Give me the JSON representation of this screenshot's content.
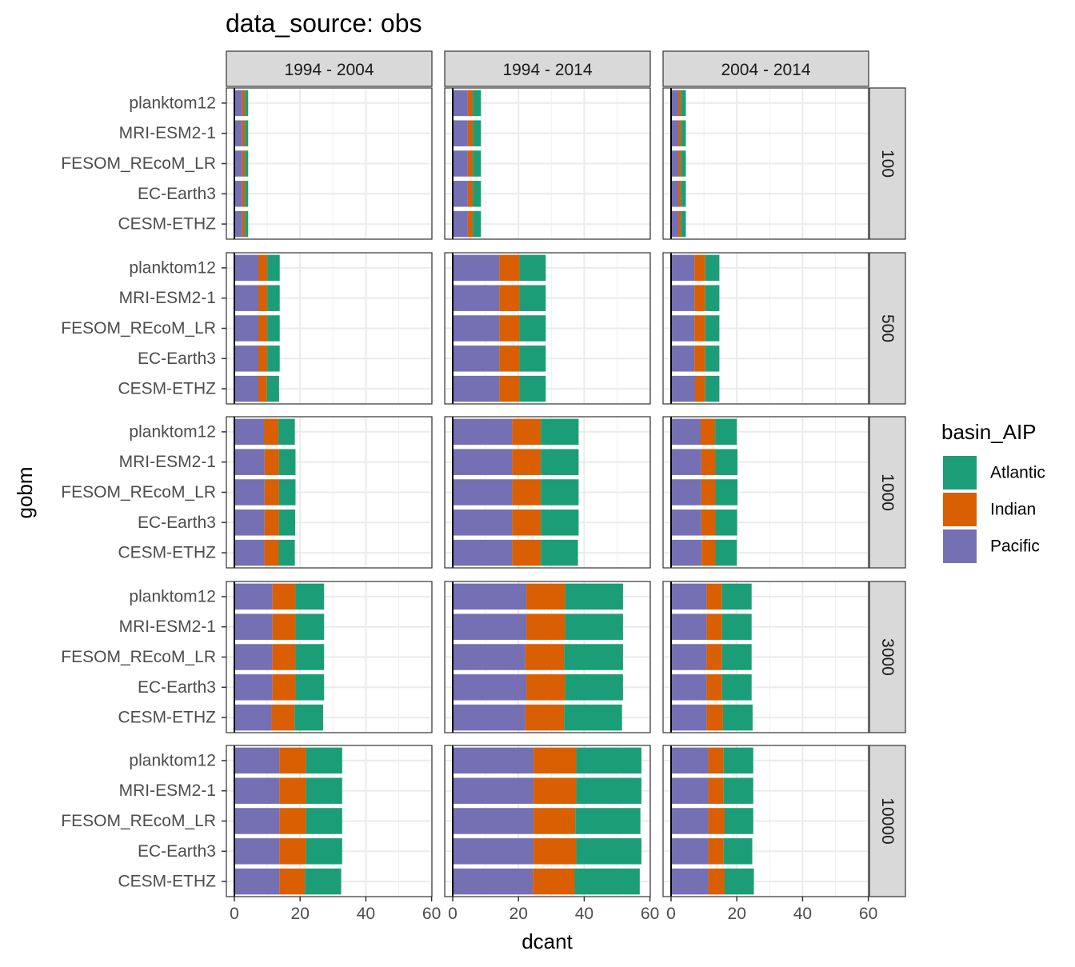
{
  "chart_data": {
    "type": "bar",
    "orientation": "horizontal",
    "stacked": true,
    "title": "data_source: obs",
    "xlabel": "dcant",
    "ylabel": "gobm",
    "xlim": [
      0,
      60
    ],
    "x_ticks": [
      "0",
      "20",
      "40",
      "60"
    ],
    "grid": true,
    "facet_columns": [
      "1994 - 2004",
      "1994 - 2014",
      "2004 - 2014"
    ],
    "facet_rows": [
      "100",
      "500",
      "1000",
      "3000",
      "10000"
    ],
    "categories": [
      "planktom12",
      "MRI-ESM2-1",
      "FESOM_REcoM_LR",
      "EC-Earth3",
      "CESM-ETHZ"
    ],
    "legend": {
      "title": "basin_AIP",
      "position": "right",
      "entries": [
        {
          "name": "Atlantic",
          "color": "#1B9E77"
        },
        {
          "name": "Indian",
          "color": "#D95F02"
        },
        {
          "name": "Pacific",
          "color": "#7570B3"
        }
      ]
    },
    "stack_order": [
      "Pacific",
      "Indian",
      "Atlantic"
    ],
    "panels": [
      {
        "column": "1994 - 2004",
        "row": "100",
        "series": {
          "Pacific": [
            2.4,
            2.4,
            2.4,
            2.4,
            2.4
          ],
          "Indian": [
            0.8,
            0.8,
            0.8,
            0.8,
            0.8
          ],
          "Atlantic": [
            1.0,
            1.0,
            1.0,
            1.0,
            1.0
          ]
        }
      },
      {
        "column": "1994 - 2014",
        "row": "100",
        "series": {
          "Pacific": [
            4.6,
            4.6,
            4.6,
            4.6,
            4.6
          ],
          "Indian": [
            1.5,
            1.5,
            1.5,
            1.5,
            1.5
          ],
          "Atlantic": [
            2.5,
            2.5,
            2.5,
            2.5,
            2.5
          ]
        }
      },
      {
        "column": "2004 - 2014",
        "row": "100",
        "series": {
          "Pacific": [
            2.2,
            2.2,
            2.2,
            2.2,
            2.2
          ],
          "Indian": [
            0.8,
            0.8,
            0.8,
            0.8,
            0.8
          ],
          "Atlantic": [
            1.5,
            1.5,
            1.5,
            1.5,
            1.5
          ]
        }
      },
      {
        "column": "1994 - 2004",
        "row": "500",
        "series": {
          "Pacific": [
            7.3,
            7.3,
            7.3,
            7.3,
            7.3
          ],
          "Indian": [
            2.7,
            2.7,
            2.7,
            2.7,
            2.6
          ],
          "Atlantic": [
            3.8,
            3.8,
            3.8,
            3.8,
            3.7
          ]
        }
      },
      {
        "column": "1994 - 2014",
        "row": "500",
        "series": {
          "Pacific": [
            14.2,
            14.2,
            14.2,
            14.2,
            14.2
          ],
          "Indian": [
            6.1,
            6.1,
            6.1,
            6.1,
            6.1
          ],
          "Atlantic": [
            8.0,
            8.0,
            8.0,
            8.0,
            8.0
          ]
        }
      },
      {
        "column": "2004 - 2014",
        "row": "500",
        "series": {
          "Pacific": [
            7.1,
            7.1,
            7.1,
            7.1,
            7.3
          ],
          "Indian": [
            3.3,
            3.3,
            3.3,
            3.3,
            3.1
          ],
          "Atlantic": [
            4.3,
            4.3,
            4.3,
            4.3,
            4.3
          ]
        }
      },
      {
        "column": "1994 - 2004",
        "row": "1000",
        "series": {
          "Pacific": [
            9.0,
            9.2,
            9.2,
            9.2,
            9.1
          ],
          "Indian": [
            4.4,
            4.4,
            4.4,
            4.4,
            4.4
          ],
          "Atlantic": [
            5.0,
            5.0,
            5.0,
            4.9,
            4.9
          ]
        }
      },
      {
        "column": "1994 - 2014",
        "row": "1000",
        "series": {
          "Pacific": [
            18.1,
            18.1,
            18.1,
            18.1,
            18.1
          ],
          "Indian": [
            8.7,
            8.7,
            8.7,
            8.7,
            8.7
          ],
          "Atlantic": [
            11.5,
            11.5,
            11.5,
            11.5,
            11.3
          ]
        }
      },
      {
        "column": "2004 - 2014",
        "row": "1000",
        "series": {
          "Pacific": [
            9.0,
            9.2,
            9.2,
            9.2,
            9.3
          ],
          "Indian": [
            4.4,
            4.3,
            4.3,
            4.3,
            4.2
          ],
          "Atlantic": [
            6.6,
            6.7,
            6.7,
            6.6,
            6.5
          ]
        }
      },
      {
        "column": "1994 - 2004",
        "row": "3000",
        "series": {
          "Pacific": [
            11.6,
            11.6,
            11.6,
            11.6,
            11.3
          ],
          "Indian": [
            7.0,
            7.0,
            7.0,
            7.0,
            7.0
          ],
          "Atlantic": [
            8.7,
            8.7,
            8.7,
            8.7,
            8.7
          ]
        }
      },
      {
        "column": "1994 - 2014",
        "row": "3000",
        "series": {
          "Pacific": [
            22.4,
            22.4,
            22.1,
            22.4,
            22.1
          ],
          "Indian": [
            11.8,
            11.8,
            11.8,
            11.8,
            11.8
          ],
          "Atlantic": [
            17.6,
            17.6,
            17.9,
            17.6,
            17.6
          ]
        }
      },
      {
        "column": "2004 - 2014",
        "row": "3000",
        "series": {
          "Pacific": [
            10.8,
            10.8,
            10.8,
            10.8,
            10.8
          ],
          "Indian": [
            4.7,
            4.7,
            4.7,
            4.7,
            5.0
          ],
          "Atlantic": [
            9.0,
            9.0,
            9.0,
            9.0,
            9.0
          ]
        }
      },
      {
        "column": "1994 - 2004",
        "row": "10000",
        "series": {
          "Pacific": [
            13.7,
            13.7,
            13.7,
            13.7,
            13.7
          ],
          "Indian": [
            8.1,
            8.1,
            8.1,
            8.1,
            7.8
          ],
          "Atlantic": [
            11.0,
            11.0,
            11.0,
            11.0,
            11.0
          ]
        }
      },
      {
        "column": "1994 - 2014",
        "row": "10000",
        "series": {
          "Pacific": [
            24.6,
            24.6,
            24.6,
            24.6,
            24.4
          ],
          "Indian": [
            13.0,
            13.0,
            12.7,
            13.0,
            12.7
          ],
          "Atlantic": [
            19.8,
            19.8,
            19.8,
            19.8,
            19.8
          ]
        }
      },
      {
        "column": "2004 - 2014",
        "row": "10000",
        "series": {
          "Pacific": [
            11.3,
            11.3,
            11.3,
            11.3,
            11.3
          ],
          "Indian": [
            4.7,
            4.7,
            5.0,
            4.7,
            5.0
          ],
          "Atlantic": [
            9.0,
            9.0,
            8.7,
            8.7,
            8.9
          ]
        }
      }
    ]
  }
}
